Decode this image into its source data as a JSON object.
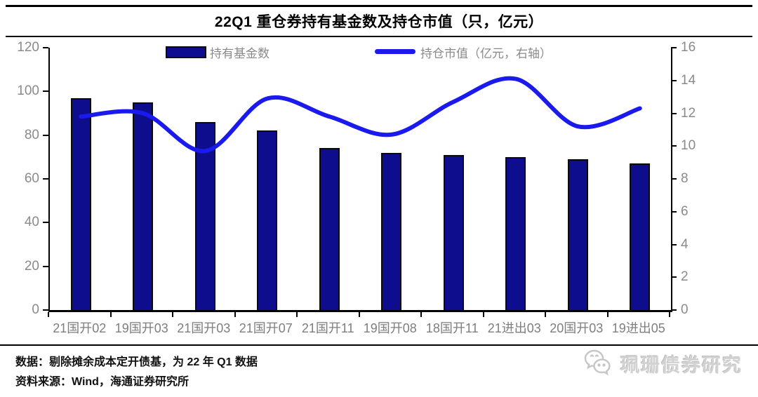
{
  "title": "22Q1 重仓券持有基金数及持仓市值（只，亿元）",
  "colors": {
    "bar": "#0d0d8d",
    "line": "#1a1aee",
    "axis_text": "#8a8a8a",
    "title_text": "#000000",
    "watermark": "#d2d2d2"
  },
  "chart_data": {
    "type": "bar+line combo",
    "title": "22Q1 重仓券持有基金数及持仓市值（只，亿元）",
    "categories": [
      "21国开02",
      "19国开03",
      "21国开03",
      "21国开07",
      "21国开11",
      "19国开08",
      "18国开11",
      "21进出03",
      "20国开03",
      "19进出05"
    ],
    "series": [
      {
        "name": "持有基金数",
        "type": "bar",
        "axis": "left",
        "values": [
          97,
          95,
          86,
          82,
          74,
          72,
          71,
          70,
          69,
          67
        ]
      },
      {
        "name": "持仓市值（亿元，右轴）",
        "type": "line",
        "axis": "right",
        "values": [
          11.8,
          12.0,
          9.7,
          12.9,
          11.8,
          10.7,
          12.7,
          14.1,
          11.2,
          12.3
        ]
      }
    ],
    "left_axis": {
      "min": 0,
      "max": 120,
      "ticks": [
        0,
        20,
        40,
        60,
        80,
        100,
        120
      ]
    },
    "right_axis": {
      "min": 0,
      "max": 16,
      "ticks": [
        0,
        2,
        4,
        6,
        8,
        10,
        12,
        14,
        16
      ]
    },
    "grid": false,
    "legend_position": "top"
  },
  "footer": {
    "line1": "数据：剔除摊余成本定开债基，为 22 年 Q1 数据",
    "line2": "资料来源：Wind，海通证券研究所"
  },
  "watermark": {
    "text": "珮珊债券研究",
    "icon": "wechat-chat-bubbles-icon"
  }
}
